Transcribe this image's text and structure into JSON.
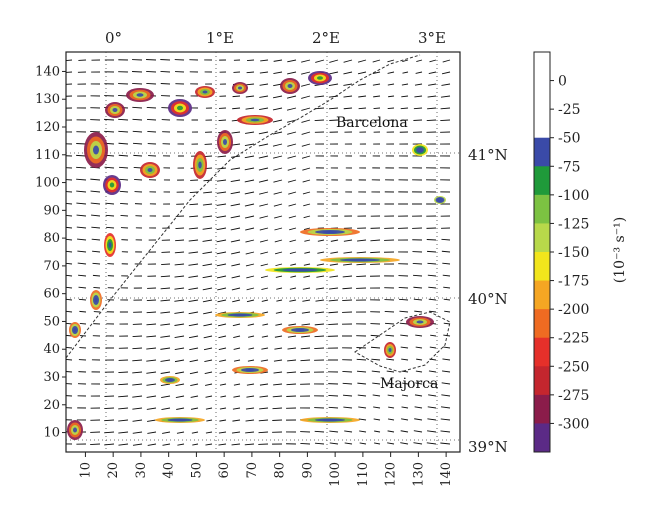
{
  "map": {
    "top_lon_labels": [
      "0°",
      "1°E",
      "2°E",
      "3°E"
    ],
    "right_lat_labels": [
      "41°N",
      "40°N",
      "39°N"
    ],
    "x_ticks": [
      "10",
      "20",
      "30",
      "40",
      "50",
      "60",
      "70",
      "80",
      "90",
      "100",
      "110",
      "120",
      "130",
      "140"
    ],
    "y_ticks": [
      "10",
      "20",
      "30",
      "40",
      "50",
      "60",
      "70",
      "80",
      "90",
      "100",
      "110",
      "120",
      "130",
      "140"
    ],
    "places": [
      {
        "name": "Barcelona"
      },
      {
        "name": "Majorca"
      }
    ],
    "x_range": [
      3,
      145
    ],
    "y_range": [
      3,
      147
    ]
  },
  "colorbar": {
    "unit_label": "(10⁻³ s⁻¹)",
    "levels": [
      "0",
      "-25",
      "-50",
      "-75",
      "-100",
      "-125",
      "-150",
      "-175",
      "-200",
      "-225",
      "-250",
      "-275",
      "-300"
    ],
    "colors": [
      "#ffffff",
      "#ffffff",
      "#ffffff",
      "#3a4aa8",
      "#1f9a3a",
      "#7cc242",
      "#b8d94a",
      "#f2e51c",
      "#f5a623",
      "#ef6b22",
      "#e5302a",
      "#c4262e",
      "#8b1c4a",
      "#5b2a86"
    ]
  },
  "colors": {
    "land_hatch": "#444444",
    "frame": "#222222"
  }
}
